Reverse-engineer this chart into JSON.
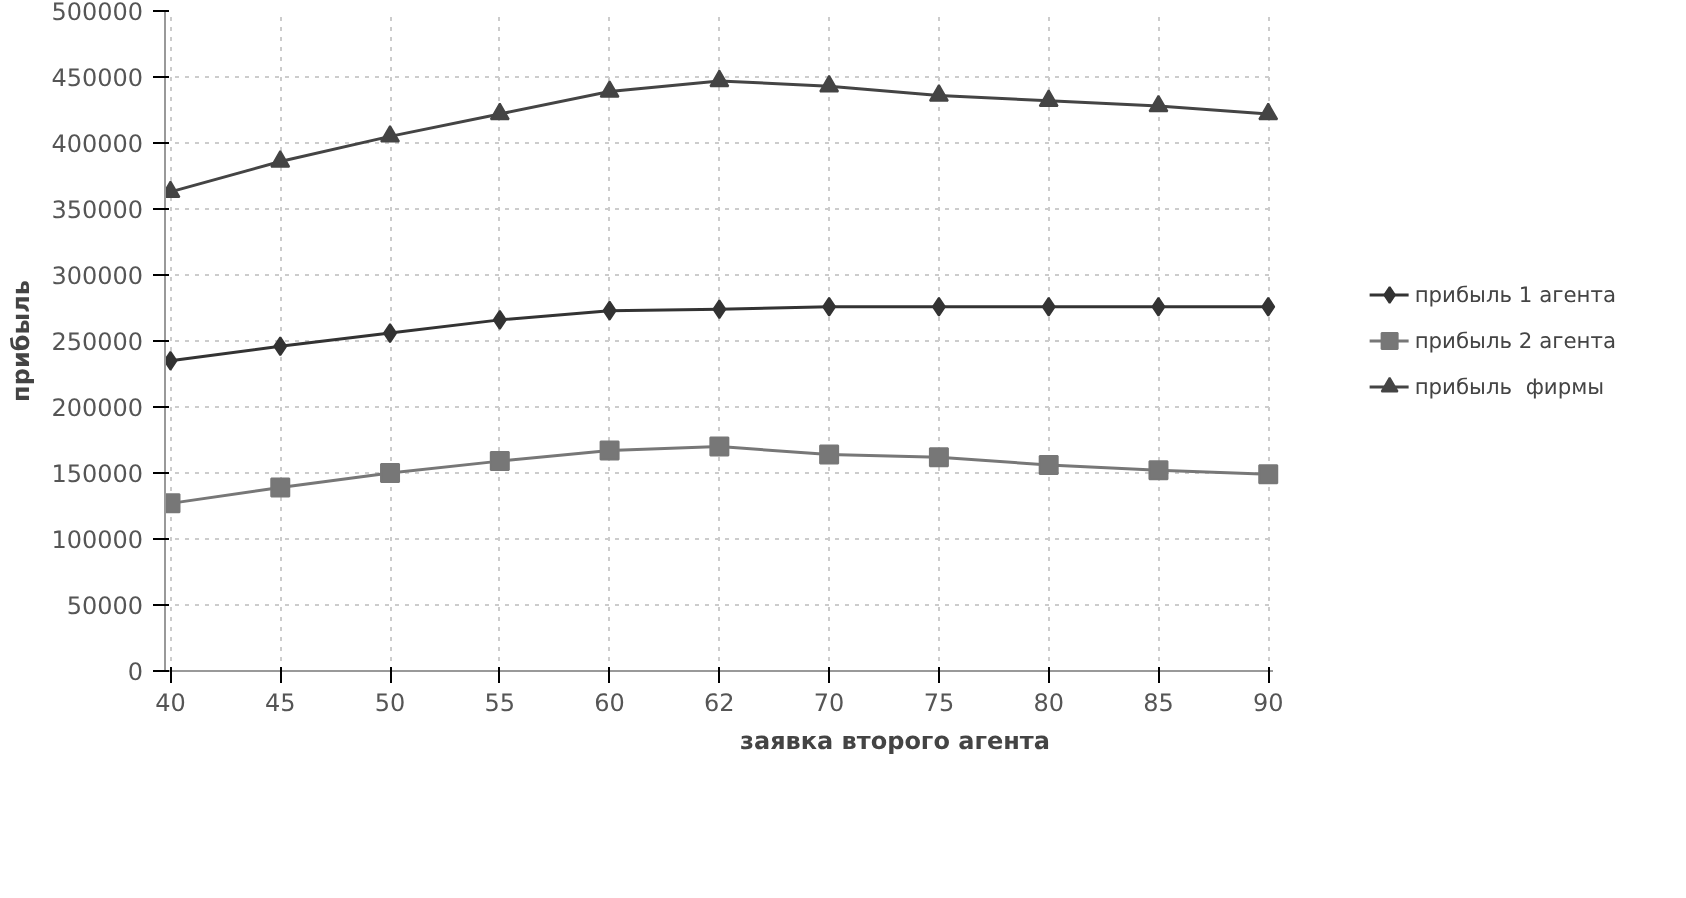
{
  "chart_data": {
    "type": "line",
    "xlabel": "заявка второго агента",
    "ylabel": "прибыль",
    "categories": [
      "40",
      "45",
      "50",
      "55",
      "60",
      "62",
      "70",
      "75",
      "80",
      "85",
      "90"
    ],
    "series": [
      {
        "name": "прибыль 1 агента",
        "color": "#333333",
        "marker": "diamond",
        "values": [
          235000,
          246000,
          256000,
          266000,
          273000,
          274000,
          276000,
          276000,
          276000,
          276000,
          276000
        ]
      },
      {
        "name": "прибыль 2 агента",
        "color": "#777777",
        "marker": "square",
        "values": [
          127000,
          139000,
          150000,
          159000,
          167000,
          170000,
          164000,
          162000,
          156000,
          152000,
          149000
        ]
      },
      {
        "name": "прибыль  фирмы",
        "color": "#444444",
        "marker": "triangle",
        "values": [
          363000,
          386000,
          405000,
          422000,
          439000,
          447000,
          443000,
          436000,
          432000,
          428000,
          422000
        ]
      }
    ],
    "ylim": [
      0,
      500000
    ],
    "yticks": [
      0,
      50000,
      100000,
      150000,
      200000,
      250000,
      300000,
      350000,
      400000,
      450000,
      500000
    ],
    "grid": true,
    "legend": "right",
    "line_style": "solid"
  }
}
